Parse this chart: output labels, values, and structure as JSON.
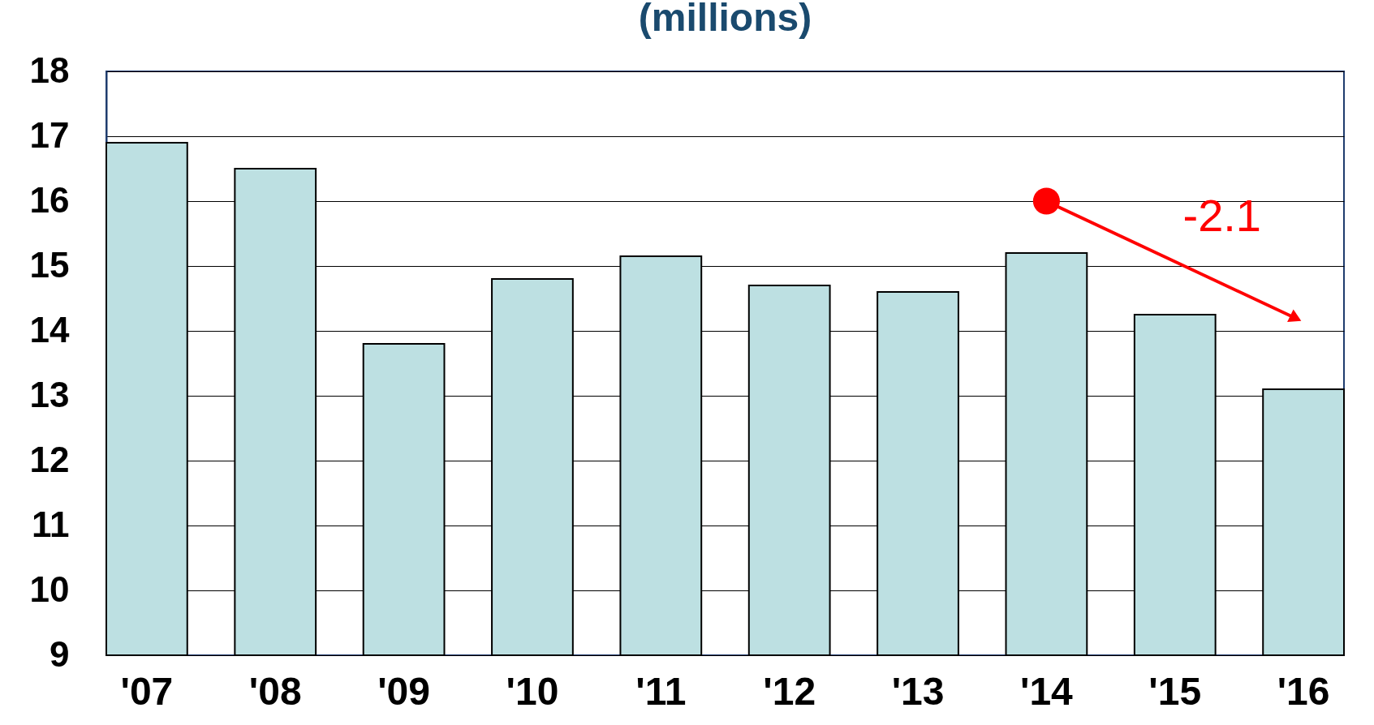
{
  "chart_data": {
    "type": "bar",
    "title": "(millions)",
    "categories": [
      "'07",
      "'08",
      "'09",
      "'10",
      "'11",
      "'12",
      "'13",
      "'14",
      "'15",
      "'16"
    ],
    "values": [
      16.9,
      16.5,
      13.8,
      14.8,
      15.15,
      14.7,
      14.6,
      15.2,
      14.25,
      13.1
    ],
    "color": "#bde0e2",
    "ylim": [
      9,
      18
    ],
    "yticks": [
      9,
      10,
      11,
      12,
      13,
      14,
      15,
      16,
      17,
      18
    ],
    "grid": "y",
    "annotations": [
      "-2.1"
    ]
  }
}
